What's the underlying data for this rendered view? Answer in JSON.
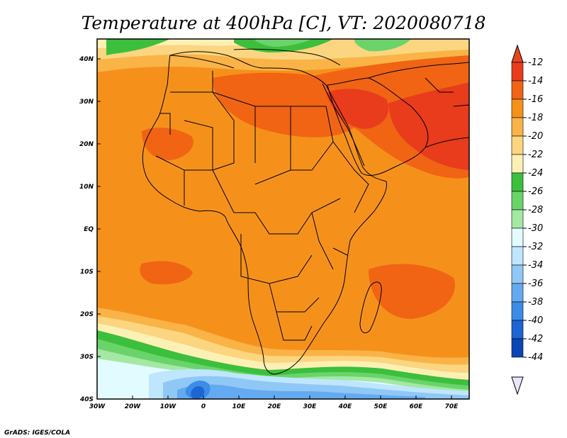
{
  "title": "Temperature at 400hPa [C], VT: 2020080718",
  "credit": "GrADS: IGES/COLA",
  "map": {
    "region": "Africa and Middle East",
    "lon_range": [
      -30,
      75
    ],
    "lat_range": [
      -40,
      45
    ],
    "x_ticks": [
      "30W",
      "20W",
      "10W",
      "0",
      "10E",
      "20E",
      "30E",
      "40E",
      "50E",
      "60E",
      "70E"
    ],
    "y_ticks": [
      "40N",
      "30N",
      "20N",
      "10N",
      "EQ",
      "10S",
      "20S",
      "30S",
      "40S"
    ]
  },
  "colorbar": {
    "labels": [
      "-12",
      "-14",
      "-16",
      "-18",
      "-20",
      "-22",
      "-24",
      "-26",
      "-28",
      "-30",
      "-32",
      "-34",
      "-36",
      "-38",
      "-40",
      "-42",
      "-44"
    ],
    "colors": [
      "#e83c1c",
      "#f06414",
      "#f5911a",
      "#f9b347",
      "#fbd57f",
      "#fdf0b4",
      "#3cbf3c",
      "#6ad46a",
      "#a4e8a4",
      "#e2fbff",
      "#bfe6ff",
      "#90c8f5",
      "#64aaf0",
      "#3c8ce8",
      "#1e64d2",
      "#0a46b4",
      "#0a1e6e"
    ],
    "top_arrow_color": "#e8461e",
    "bottom_arrow_color": "#e6e6ff"
  }
}
